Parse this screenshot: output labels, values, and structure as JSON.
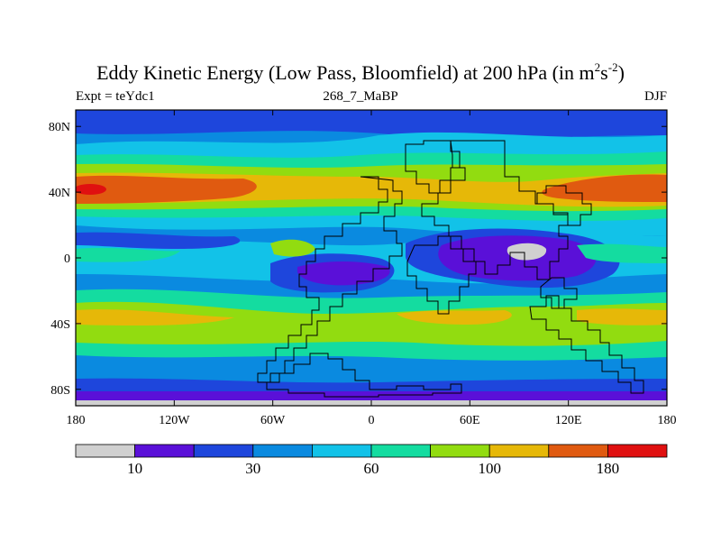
{
  "title": {
    "main": "Eddy Kinetic Energy (Low Pass, Bloomfield) at 200 hPa (in m",
    "sup1": "2",
    "mid": "s",
    "sup2": "-2",
    "close": ")"
  },
  "subtitle": {
    "left": "Expt = teYdc1",
    "center": "268_7_MaBP",
    "right": "DJF"
  },
  "map_data": {
    "lon_range": [
      -180,
      180
    ],
    "lat_range": [
      -90,
      90
    ],
    "lat_ticks": [
      {
        "value": 80,
        "label": "80N"
      },
      {
        "value": 40,
        "label": "40N"
      },
      {
        "value": 0,
        "label": "0"
      },
      {
        "value": -40,
        "label": "40S"
      },
      {
        "value": -80,
        "label": "80S"
      }
    ],
    "lon_ticks": [
      {
        "value": -180,
        "label": "180"
      },
      {
        "value": -120,
        "label": "120W"
      },
      {
        "value": -60,
        "label": "60W"
      },
      {
        "value": 0,
        "label": "0"
      },
      {
        "value": 60,
        "label": "60E"
      },
      {
        "value": 120,
        "label": "120E"
      },
      {
        "value": 180,
        "label": "180"
      }
    ]
  },
  "colorbar": {
    "colors": [
      "#d0d0d0",
      "#5a10d8",
      "#1e46dc",
      "#0a8ae0",
      "#12c2e8",
      "#14dca0",
      "#92dc10",
      "#e6b808",
      "#e05a10",
      "#e01010"
    ],
    "labels": [
      {
        "boundary": 1,
        "text": "10"
      },
      {
        "boundary": 3,
        "text": "30"
      },
      {
        "boundary": 5,
        "text": "60"
      },
      {
        "boundary": 7,
        "text": "100"
      },
      {
        "boundary": 9,
        "text": "180"
      }
    ]
  }
}
